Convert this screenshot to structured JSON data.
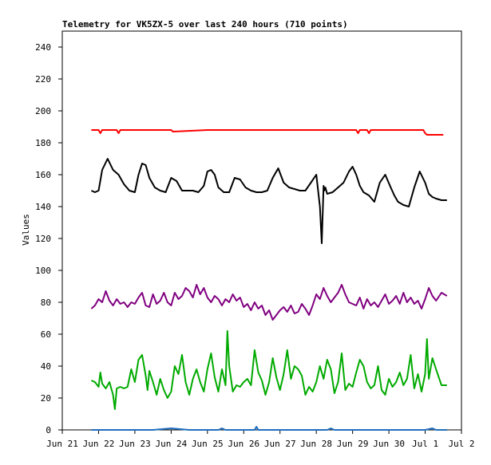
{
  "chart_data": {
    "type": "line",
    "title": "Telemetry for VK5ZX-5 over last 240 hours (710 points)",
    "ylabel": "Values",
    "xlabel": "",
    "ylim": [
      0,
      250
    ],
    "yticks": [
      0,
      20,
      40,
      60,
      80,
      100,
      120,
      140,
      160,
      180,
      200,
      220,
      240
    ],
    "xlim": [
      0,
      11
    ],
    "xticks": [
      "Jun 21",
      "Jun 22",
      "Jun 23",
      "Jun 24",
      "Jun 25",
      "Jun 26",
      "Jun 27",
      "Jun 28",
      "Jun 29",
      "Jun 30",
      "Jul 1",
      "Jul 2"
    ],
    "legend": "none",
    "grid": false,
    "series": [
      {
        "color": "#ff0000",
        "x": [
          0.8,
          1.0,
          1.05,
          1.1,
          1.5,
          1.55,
          1.6,
          2.0,
          3.0,
          3.05,
          4.0,
          5.0,
          6.0,
          7.0,
          8.0,
          8.1,
          8.15,
          8.2,
          8.4,
          8.45,
          8.5,
          9.0,
          9.5,
          9.95,
          10.0,
          10.05,
          10.2,
          10.3,
          10.5
        ],
        "values": [
          188,
          188,
          186,
          188,
          188,
          186,
          188,
          188,
          188,
          187,
          188,
          188,
          188,
          188,
          188,
          188,
          186,
          188,
          188,
          186,
          188,
          188,
          188,
          188,
          186,
          185,
          185,
          185,
          185
        ]
      },
      {
        "color": "#000000",
        "x": [
          0.8,
          0.9,
          1.0,
          1.1,
          1.25,
          1.4,
          1.55,
          1.7,
          1.85,
          2.0,
          2.1,
          2.2,
          2.3,
          2.4,
          2.55,
          2.7,
          2.85,
          3.0,
          3.15,
          3.3,
          3.45,
          3.6,
          3.75,
          3.9,
          4.0,
          4.1,
          4.2,
          4.3,
          4.45,
          4.6,
          4.75,
          4.9,
          5.05,
          5.2,
          5.35,
          5.5,
          5.65,
          5.8,
          5.95,
          6.1,
          6.25,
          6.4,
          6.55,
          6.7,
          6.85,
          7.0,
          7.1,
          7.15,
          7.2,
          7.22,
          7.25,
          7.3,
          7.45,
          7.6,
          7.75,
          7.9,
          8.0,
          8.1,
          8.2,
          8.3,
          8.45,
          8.6,
          8.75,
          8.9,
          9.05,
          9.15,
          9.25,
          9.4,
          9.55,
          9.7,
          9.85,
          10.0,
          10.1,
          10.2,
          10.3,
          10.45,
          10.6
        ],
        "values": [
          150,
          149,
          150,
          163,
          170,
          163,
          160,
          154,
          150,
          149,
          160,
          167,
          166,
          158,
          152,
          150,
          149,
          158,
          156,
          150,
          150,
          150,
          149,
          153,
          162,
          163,
          160,
          152,
          149,
          149,
          158,
          157,
          152,
          150,
          149,
          149,
          150,
          158,
          164,
          155,
          152,
          151,
          150,
          150,
          155,
          160,
          140,
          117,
          153,
          150,
          152,
          148,
          149,
          152,
          155,
          162,
          165,
          160,
          153,
          149,
          147,
          143,
          155,
          160,
          152,
          147,
          143,
          141,
          140,
          152,
          162,
          155,
          148,
          146,
          145,
          144,
          144
        ]
      },
      {
        "color": "#800080",
        "x": [
          0.8,
          0.9,
          1.0,
          1.1,
          1.2,
          1.3,
          1.4,
          1.5,
          1.6,
          1.7,
          1.8,
          1.9,
          2.0,
          2.1,
          2.2,
          2.3,
          2.4,
          2.5,
          2.6,
          2.7,
          2.8,
          2.9,
          3.0,
          3.1,
          3.2,
          3.3,
          3.4,
          3.5,
          3.6,
          3.7,
          3.8,
          3.9,
          4.0,
          4.1,
          4.2,
          4.3,
          4.4,
          4.5,
          4.6,
          4.7,
          4.8,
          4.9,
          5.0,
          5.1,
          5.2,
          5.3,
          5.4,
          5.5,
          5.6,
          5.7,
          5.8,
          5.9,
          6.0,
          6.1,
          6.2,
          6.3,
          6.4,
          6.5,
          6.6,
          6.7,
          6.8,
          6.9,
          7.0,
          7.1,
          7.2,
          7.3,
          7.4,
          7.5,
          7.6,
          7.7,
          7.8,
          7.9,
          8.0,
          8.1,
          8.2,
          8.3,
          8.4,
          8.5,
          8.6,
          8.7,
          8.8,
          8.9,
          9.0,
          9.1,
          9.2,
          9.3,
          9.4,
          9.5,
          9.6,
          9.7,
          9.8,
          9.9,
          10.0,
          10.1,
          10.2,
          10.3,
          10.45,
          10.6
        ],
        "values": [
          76,
          78,
          82,
          80,
          87,
          81,
          78,
          82,
          79,
          80,
          77,
          80,
          79,
          83,
          86,
          78,
          77,
          85,
          79,
          81,
          86,
          80,
          78,
          86,
          82,
          84,
          89,
          87,
          83,
          91,
          85,
          89,
          83,
          80,
          84,
          82,
          78,
          82,
          80,
          85,
          81,
          83,
          77,
          79,
          75,
          80,
          76,
          78,
          72,
          75,
          69,
          72,
          75,
          77,
          74,
          78,
          73,
          74,
          79,
          76,
          72,
          78,
          85,
          82,
          89,
          84,
          80,
          83,
          86,
          91,
          85,
          80,
          79,
          78,
          83,
          76,
          82,
          78,
          80,
          77,
          81,
          85,
          79,
          81,
          84,
          79,
          86,
          80,
          83,
          79,
          81,
          76,
          82,
          89,
          84,
          81,
          86,
          84
        ]
      },
      {
        "color": "#00aa00",
        "x": [
          0.8,
          0.9,
          1.0,
          1.05,
          1.1,
          1.2,
          1.3,
          1.4,
          1.45,
          1.5,
          1.6,
          1.7,
          1.8,
          1.9,
          2.0,
          2.1,
          2.2,
          2.3,
          2.35,
          2.4,
          2.5,
          2.6,
          2.7,
          2.8,
          2.9,
          3.0,
          3.1,
          3.2,
          3.3,
          3.4,
          3.5,
          3.6,
          3.7,
          3.8,
          3.9,
          4.0,
          4.1,
          4.2,
          4.3,
          4.4,
          4.5,
          4.55,
          4.6,
          4.7,
          4.8,
          4.9,
          5.0,
          5.1,
          5.2,
          5.3,
          5.4,
          5.5,
          5.6,
          5.7,
          5.8,
          5.9,
          6.0,
          6.1,
          6.2,
          6.3,
          6.4,
          6.5,
          6.6,
          6.7,
          6.8,
          6.9,
          7.0,
          7.1,
          7.2,
          7.3,
          7.4,
          7.5,
          7.6,
          7.7,
          7.8,
          7.9,
          8.0,
          8.1,
          8.2,
          8.3,
          8.4,
          8.5,
          8.6,
          8.7,
          8.8,
          8.9,
          9.0,
          9.1,
          9.2,
          9.3,
          9.4,
          9.5,
          9.6,
          9.7,
          9.8,
          9.9,
          10.0,
          10.05,
          10.1,
          10.2,
          10.3,
          10.45,
          10.6
        ],
        "values": [
          31,
          30,
          27,
          36,
          29,
          26,
          30,
          22,
          13,
          26,
          27,
          26,
          27,
          38,
          30,
          44,
          47,
          34,
          25,
          37,
          30,
          22,
          32,
          25,
          20,
          24,
          40,
          35,
          47,
          30,
          22,
          32,
          38,
          30,
          24,
          38,
          48,
          33,
          24,
          38,
          28,
          62,
          40,
          24,
          28,
          27,
          30,
          32,
          28,
          50,
          36,
          31,
          22,
          30,
          45,
          33,
          25,
          35,
          50,
          32,
          40,
          38,
          34,
          22,
          27,
          24,
          30,
          40,
          32,
          44,
          38,
          23,
          30,
          48,
          25,
          29,
          27,
          36,
          44,
          40,
          30,
          26,
          28,
          40,
          25,
          22,
          32,
          27,
          30,
          36,
          28,
          32,
          47,
          26,
          35,
          24,
          35,
          57,
          32,
          45,
          38,
          28,
          28
        ]
      },
      {
        "color": "#1f6fbf",
        "x": [
          0.8,
          1.5,
          2.5,
          3.0,
          3.5,
          4.0,
          4.3,
          4.4,
          4.5,
          5.0,
          5.3,
          5.35,
          5.4,
          6.0,
          6.5,
          7.0,
          7.3,
          7.4,
          7.5,
          8.0,
          8.5,
          9.0,
          9.5,
          10.0,
          10.2,
          10.3,
          10.6
        ],
        "values": [
          0,
          0,
          0,
          1,
          0,
          0,
          0,
          1,
          0,
          0,
          0,
          2,
          0,
          0,
          0,
          0,
          0,
          1,
          0,
          0,
          0,
          0,
          0,
          0,
          1,
          0,
          0
        ]
      }
    ]
  }
}
